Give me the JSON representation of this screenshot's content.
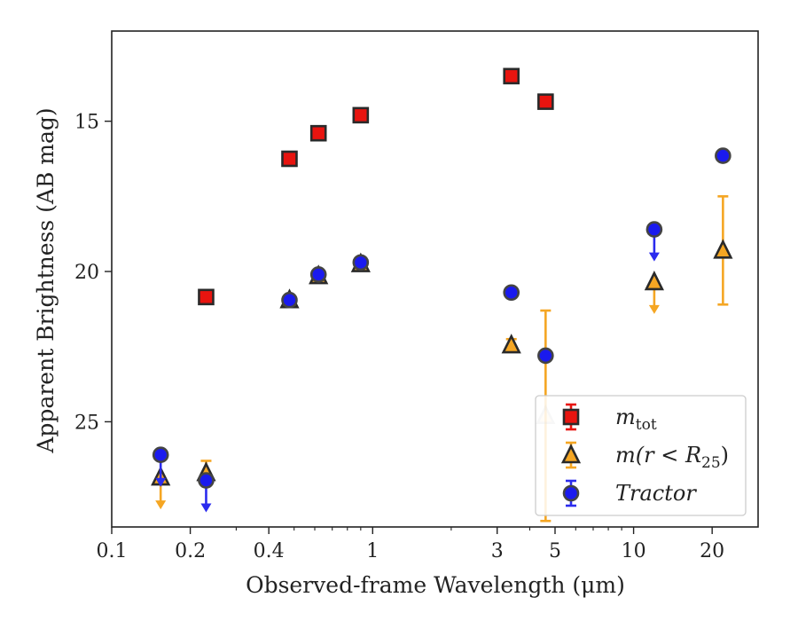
{
  "chart_data": {
    "type": "scatter",
    "title": "",
    "xlabel": "Observed-frame Wavelength (μm)",
    "ylabel": "Apparent Brightness (AB mag)",
    "x_scale": "log",
    "xlim": [
      0.1,
      30
    ],
    "ylim": [
      28.5,
      12.0
    ],
    "y_inverted": true,
    "x_ticks": [
      0.1,
      0.2,
      0.4,
      1,
      3,
      5,
      10,
      20
    ],
    "x_tick_labels": [
      "0.1",
      "0.2",
      "0.4",
      "1",
      "3",
      "5",
      "10",
      "20"
    ],
    "y_ticks": [
      15,
      20,
      25
    ],
    "y_tick_labels": [
      "15",
      "20",
      "25"
    ],
    "grid": false,
    "legend_position": "bottom-right",
    "series": [
      {
        "name": "m_tot",
        "legend_label": "m",
        "legend_subscript": "tot",
        "marker": "square",
        "color": "#e8140f",
        "edge": "#2a2a2a",
        "points": [
          {
            "x": 0.23,
            "y": 20.85
          },
          {
            "x": 0.48,
            "y": 16.25
          },
          {
            "x": 0.62,
            "y": 15.4
          },
          {
            "x": 0.9,
            "y": 14.8
          },
          {
            "x": 3.4,
            "y": 13.5
          },
          {
            "x": 4.6,
            "y": 14.35
          }
        ]
      },
      {
        "name": "m(r < R_25)",
        "legend_label": "m(r < R",
        "legend_subscript": "25",
        "legend_suffix": ")",
        "marker": "triangle",
        "color": "#f5a623",
        "edge": "#2a2a2a",
        "errcolor": "#f5a623",
        "points": [
          {
            "x": 0.154,
            "y": 26.85,
            "upper_limit": true
          },
          {
            "x": 0.23,
            "y": 26.7,
            "err": 0.4
          },
          {
            "x": 0.48,
            "y": 20.95
          },
          {
            "x": 0.62,
            "y": 20.15
          },
          {
            "x": 0.9,
            "y": 19.75
          },
          {
            "x": 3.4,
            "y": 22.45,
            "err": 0.2
          },
          {
            "x": 4.6,
            "y": 24.8,
            "err_low": 3.5,
            "err_high": 3.5,
            "faded": true
          },
          {
            "x": 12.0,
            "y": 20.35,
            "upper_limit": true
          },
          {
            "x": 22.0,
            "y": 19.3,
            "err": 1.8
          }
        ]
      },
      {
        "name": "Tractor",
        "legend_label": "Tractor",
        "marker": "circle",
        "color": "#1a1aee",
        "edge": "#444444",
        "errcolor": "#2b2bee",
        "points": [
          {
            "x": 0.154,
            "y": 26.1,
            "upper_limit": true
          },
          {
            "x": 0.23,
            "y": 26.95,
            "upper_limit": true
          },
          {
            "x": 0.48,
            "y": 20.95
          },
          {
            "x": 0.62,
            "y": 20.1
          },
          {
            "x": 0.9,
            "y": 19.7
          },
          {
            "x": 3.4,
            "y": 20.7
          },
          {
            "x": 4.6,
            "y": 22.8
          },
          {
            "x": 12.0,
            "y": 18.6,
            "upper_limit": true
          },
          {
            "x": 22.0,
            "y": 16.15
          }
        ]
      }
    ]
  }
}
